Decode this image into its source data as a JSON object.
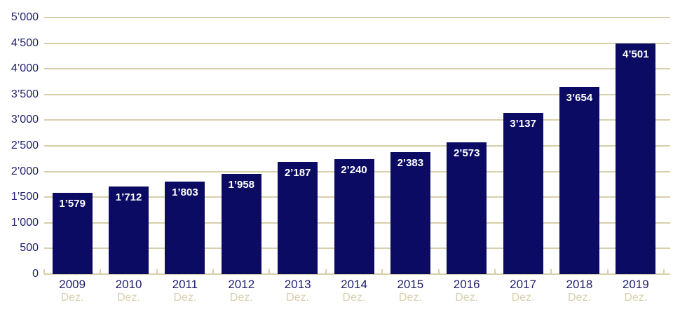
{
  "chart_data": {
    "type": "bar",
    "title": "",
    "xlabel": "",
    "ylabel": "",
    "categories": [
      "2009",
      "2010",
      "2011",
      "2012",
      "2013",
      "2014",
      "2015",
      "2016",
      "2017",
      "2018",
      "2019"
    ],
    "category_sublabel": "Dez.",
    "values": [
      1579,
      1712,
      1803,
      1958,
      2187,
      2240,
      2383,
      2573,
      3137,
      3654,
      4501
    ],
    "value_labels": [
      "1’579",
      "1’712",
      "1’803",
      "1’958",
      "2’187",
      "2’240",
      "2’383",
      "2’573",
      "3’137",
      "3’654",
      "4’501"
    ],
    "y_tick_values": [
      0,
      500,
      1000,
      1500,
      2000,
      2500,
      3000,
      3500,
      4000,
      4500,
      5000
    ],
    "y_tick_labels": [
      "0",
      "500",
      "1’000",
      "1’500",
      "2’000",
      "2’500",
      "3’000",
      "3’500",
      "4’000",
      "4’500",
      "5’000"
    ],
    "ylim": [
      0,
      5000
    ],
    "grid": true,
    "legend": "none",
    "colors": {
      "bar": "#0b0b63",
      "grid": "#d8cfad",
      "axis_line": "#d8cfad",
      "axis_text": "#1d1d6d",
      "sublabel_text": "#d8cfad",
      "value_label_text": "#ffffff",
      "background": "#ffffff"
    }
  }
}
